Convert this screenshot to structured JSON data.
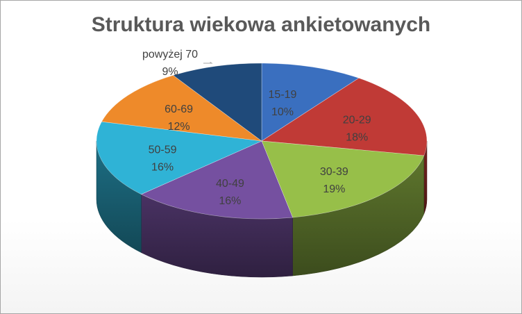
{
  "chart_data": {
    "type": "pie",
    "title": "Struktura wiekowa ankietowanych",
    "categories": [
      "15-19",
      "20-29",
      "30-39",
      "40-49",
      "50-59",
      "60-69",
      "powyżej 70"
    ],
    "values": [
      10,
      18,
      19,
      16,
      16,
      12,
      9
    ],
    "value_labels": [
      "10%",
      "18%",
      "19%",
      "16%",
      "16%",
      "12%",
      "9%"
    ],
    "colors": [
      "#3a6fbf",
      "#c03a36",
      "#97bf49",
      "#7550a0",
      "#2fb3d6",
      "#ee8a2a",
      "#1f4a7a"
    ],
    "style": "3d",
    "legend": "none"
  }
}
